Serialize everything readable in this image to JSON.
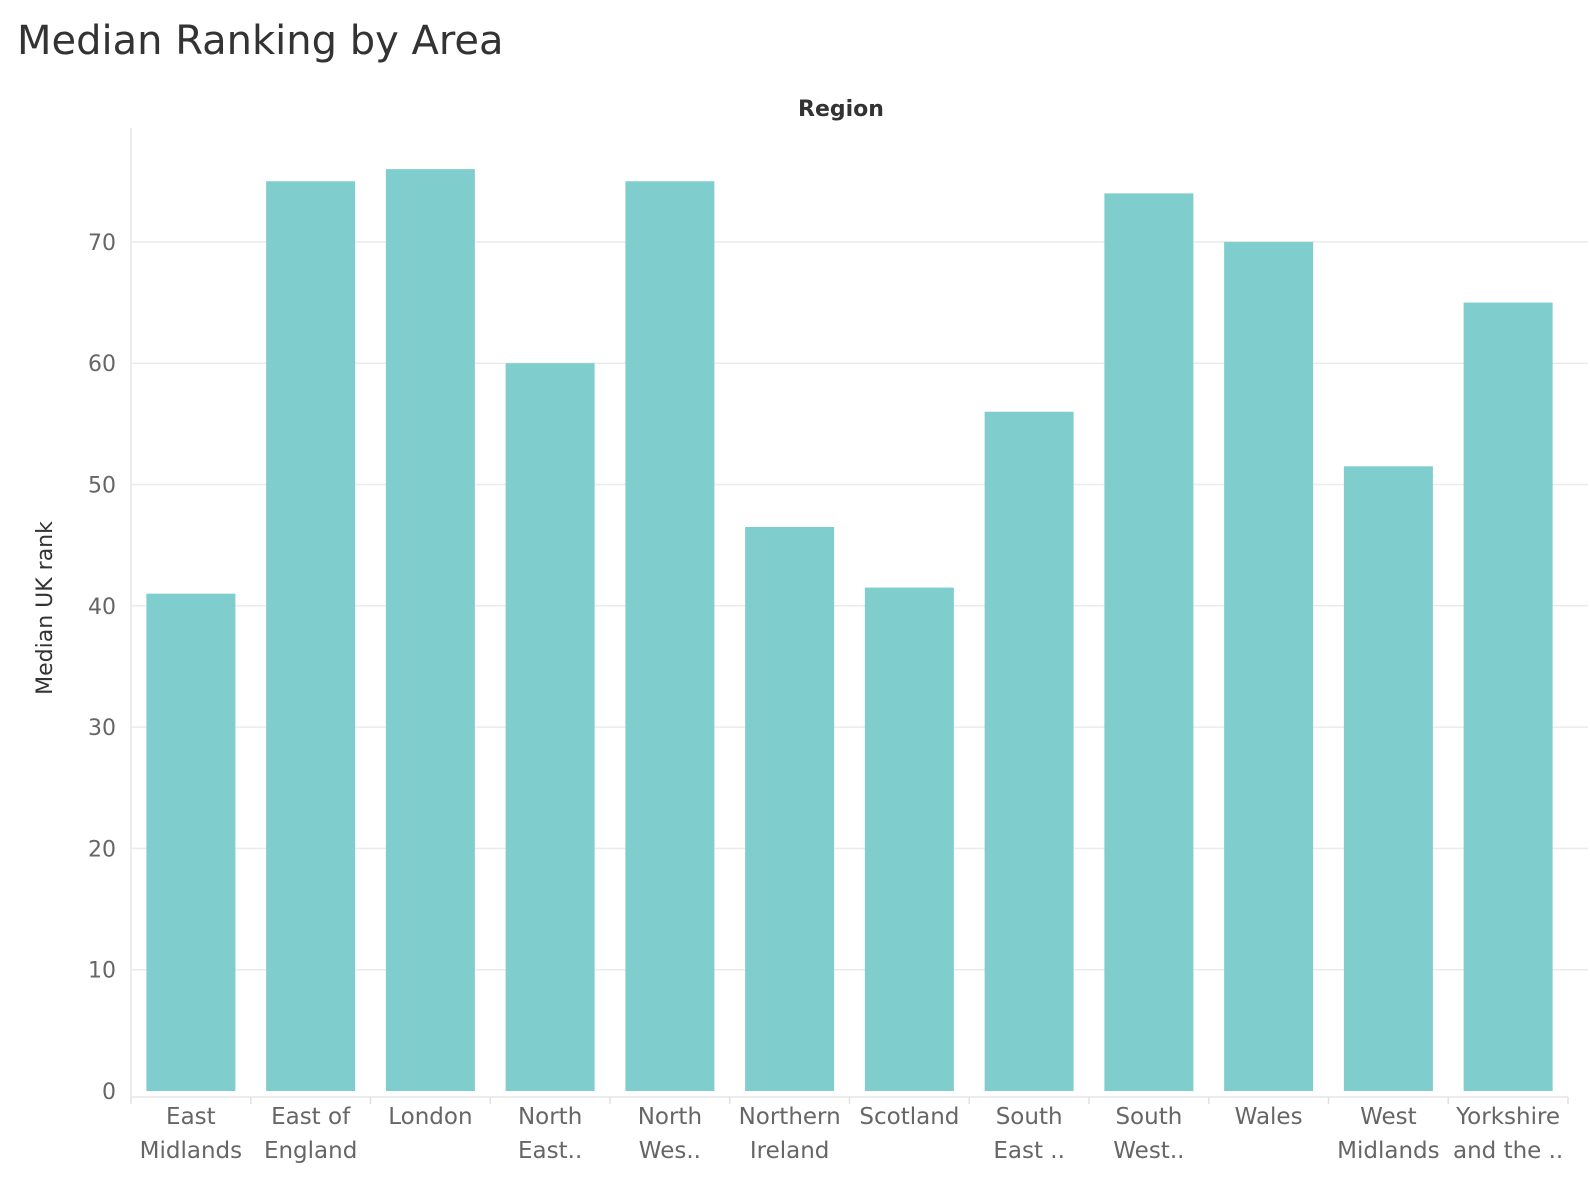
{
  "chart_data": {
    "type": "bar",
    "title": "Median Ranking by Area",
    "xlabel": "Region",
    "ylabel": "Median UK rank",
    "categories": [
      [
        "East",
        "Midlands"
      ],
      [
        "East of",
        "England"
      ],
      [
        "London"
      ],
      [
        "North",
        "East.."
      ],
      [
        "North",
        "Wes.."
      ],
      [
        "Northern",
        "Ireland"
      ],
      [
        "Scotland"
      ],
      [
        "South",
        "East .."
      ],
      [
        "South",
        "West.."
      ],
      [
        "Wales"
      ],
      [
        "West",
        "Midlands"
      ],
      [
        "Yorkshire",
        "and the .."
      ]
    ],
    "values": [
      41,
      75,
      76,
      60,
      75,
      46.5,
      41.5,
      56,
      74,
      70,
      51.5,
      65
    ],
    "ylim": [
      0,
      78
    ],
    "yticks": [
      0,
      10,
      20,
      30,
      40,
      50,
      60,
      70
    ],
    "grid": true,
    "bar_color": "#80cdcd",
    "grid_color": "#ebebeb"
  }
}
